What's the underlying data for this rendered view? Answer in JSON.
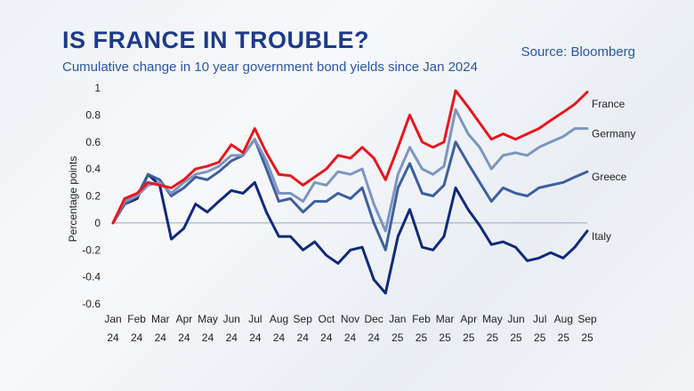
{
  "header": {
    "title": "IS FRANCE IN TROUBLE?",
    "subtitle": "Cumulative change in 10 year government bond yields since Jan 2024",
    "source": "Source: Bloomberg"
  },
  "chart_data": {
    "type": "line",
    "title": "IS FRANCE IN TROUBLE?",
    "subtitle": "Cumulative change in 10 year government bond yields since Jan 2024",
    "xlabel": "",
    "ylabel": "Percentage points",
    "ylim": [
      -0.6,
      1.0
    ],
    "yticks": [
      1,
      0.8,
      0.6,
      0.4,
      0.2,
      0,
      -0.2,
      -0.4,
      -0.6
    ],
    "ytick_labels": [
      "1",
      "0.8",
      "0.6",
      "0.4",
      "0.2",
      "0",
      "-0.2",
      "-0.4",
      "-0.6"
    ],
    "grid": "horizontal zero line only",
    "legend": "labels at line ends, right",
    "x_tick_labels": [
      {
        "month": "Jan",
        "year": "24"
      },
      {
        "month": "Feb",
        "year": "24"
      },
      {
        "month": "Mar",
        "year": "24"
      },
      {
        "month": "Apr",
        "year": "24"
      },
      {
        "month": "May",
        "year": "24"
      },
      {
        "month": "Jun",
        "year": "24"
      },
      {
        "month": "Jul",
        "year": "24"
      },
      {
        "month": "Aug",
        "year": "24"
      },
      {
        "month": "Sep",
        "year": "24"
      },
      {
        "month": "Oct",
        "year": "24"
      },
      {
        "month": "Nov",
        "year": "24"
      },
      {
        "month": "Dec",
        "year": "24"
      },
      {
        "month": "Jan",
        "year": "25"
      },
      {
        "month": "Feb",
        "year": "25"
      },
      {
        "month": "Mar",
        "year": "25"
      },
      {
        "month": "Apr",
        "year": "25"
      },
      {
        "month": "May",
        "year": "25"
      },
      {
        "month": "Jun",
        "year": "25"
      },
      {
        "month": "Jul",
        "year": "25"
      },
      {
        "month": "Aug",
        "year": "25"
      },
      {
        "month": "Sep",
        "year": "25"
      }
    ],
    "x": [
      "2024-01-01",
      "2024-01-16",
      "2024-02-01",
      "2024-02-15",
      "2024-03-01",
      "2024-03-16",
      "2024-04-01",
      "2024-04-16",
      "2024-05-01",
      "2024-05-16",
      "2024-06-01",
      "2024-06-16",
      "2024-07-01",
      "2024-07-16",
      "2024-08-01",
      "2024-08-16",
      "2024-09-01",
      "2024-09-16",
      "2024-10-01",
      "2024-10-16",
      "2024-11-01",
      "2024-11-16",
      "2024-12-01",
      "2024-12-16",
      "2025-01-01",
      "2025-01-16",
      "2025-02-01",
      "2025-02-15",
      "2025-03-01",
      "2025-03-16",
      "2025-04-01",
      "2025-04-16",
      "2025-05-01",
      "2025-05-16",
      "2025-06-01",
      "2025-06-16",
      "2025-07-01",
      "2025-07-16",
      "2025-08-01",
      "2025-08-16",
      "2025-09-01"
    ],
    "series": [
      {
        "name": "France",
        "color": "#e8161d",
        "values": [
          0.0,
          0.18,
          0.22,
          0.3,
          0.28,
          0.26,
          0.32,
          0.4,
          0.42,
          0.45,
          0.58,
          0.52,
          0.7,
          0.52,
          0.36,
          0.35,
          0.28,
          0.34,
          0.4,
          0.5,
          0.48,
          0.56,
          0.48,
          0.32,
          0.56,
          0.8,
          0.6,
          0.56,
          0.6,
          0.98,
          0.86,
          0.74,
          0.62,
          0.66,
          0.62,
          0.66,
          0.7,
          0.76,
          0.82,
          0.88,
          0.97
        ]
      },
      {
        "name": "Germany",
        "color": "#7d95bf",
        "values": [
          0.0,
          0.16,
          0.2,
          0.28,
          0.3,
          0.22,
          0.3,
          0.36,
          0.38,
          0.42,
          0.5,
          0.5,
          0.62,
          0.46,
          0.22,
          0.22,
          0.16,
          0.3,
          0.28,
          0.38,
          0.36,
          0.4,
          0.14,
          -0.06,
          0.36,
          0.56,
          0.4,
          0.36,
          0.42,
          0.84,
          0.66,
          0.56,
          0.4,
          0.5,
          0.52,
          0.5,
          0.56,
          0.6,
          0.64,
          0.7,
          0.7
        ]
      },
      {
        "name": "Greece",
        "color": "#3d5f9f",
        "values": [
          0.0,
          0.14,
          0.2,
          0.36,
          0.32,
          0.2,
          0.26,
          0.34,
          0.32,
          0.38,
          0.46,
          0.5,
          0.62,
          0.4,
          0.16,
          0.18,
          0.08,
          0.16,
          0.16,
          0.22,
          0.18,
          0.26,
          0.0,
          -0.2,
          0.26,
          0.44,
          0.22,
          0.2,
          0.28,
          0.6,
          0.44,
          0.3,
          0.16,
          0.26,
          0.22,
          0.2,
          0.26,
          0.28,
          0.3,
          0.34,
          0.38
        ]
      },
      {
        "name": "Italy",
        "color": "#10297a",
        "values": [
          0.0,
          0.14,
          0.18,
          0.36,
          0.28,
          -0.12,
          -0.04,
          0.14,
          0.08,
          0.16,
          0.24,
          0.22,
          0.3,
          0.08,
          -0.1,
          -0.1,
          -0.2,
          -0.14,
          -0.24,
          -0.3,
          -0.2,
          -0.18,
          -0.42,
          -0.52,
          -0.1,
          0.1,
          -0.18,
          -0.2,
          -0.1,
          0.26,
          0.1,
          -0.02,
          -0.16,
          -0.14,
          -0.18,
          -0.28,
          -0.26,
          -0.22,
          -0.26,
          -0.18,
          -0.06
        ]
      }
    ]
  }
}
